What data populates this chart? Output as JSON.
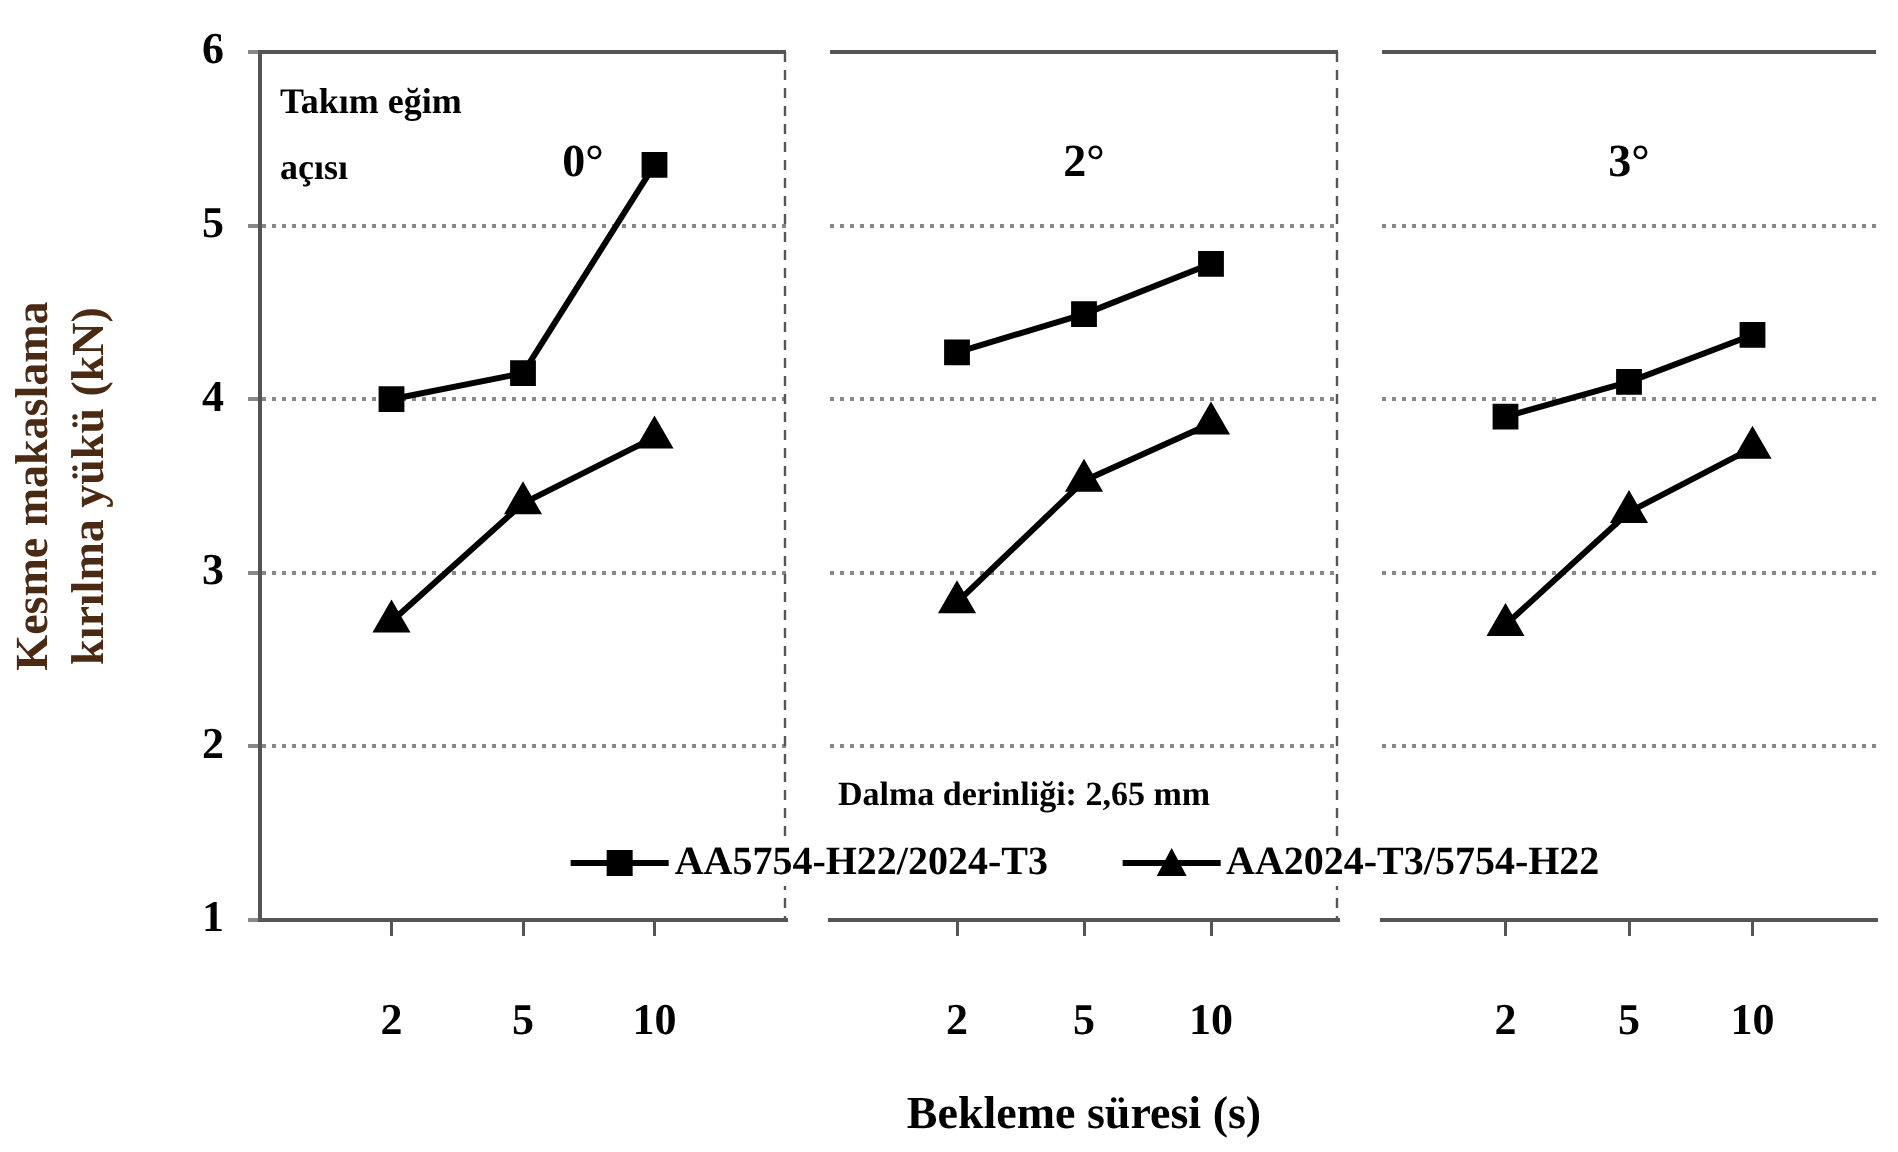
{
  "chart_data": [
    {
      "type": "line",
      "title": "0°",
      "ylabel": "Kesme makaslama kırılma yükü (kN)",
      "annotations": [
        "Takım eğim açısı"
      ],
      "categories": [
        "2",
        "5",
        "10"
      ],
      "series": [
        {
          "color": "#000000",
          "marker": "square",
          "values": [
            4.0,
            4.15,
            5.35
          ]
        },
        {
          "color": "#000000",
          "marker": "triangle",
          "values": [
            2.72,
            3.4,
            3.78
          ]
        }
      ],
      "ylim": [
        1,
        6
      ],
      "yticks": [
        1,
        2,
        3,
        4,
        5,
        6
      ],
      "grid": "y",
      "line_style": "solid"
    },
    {
      "type": "line",
      "title": "2°",
      "xlabel": "Bekleme süresi (s)",
      "annotations": [
        "Dalma derinliği: 2,65 mm"
      ],
      "categories": [
        "2",
        "5",
        "10"
      ],
      "series": [
        {
          "name": "AA5754-H22/2024-T3",
          "color": "#000000",
          "marker": "square",
          "values": [
            4.27,
            4.49,
            4.78
          ]
        },
        {
          "name": "AA2024-T3/5754-H22",
          "color": "#000000",
          "marker": "triangle",
          "values": [
            2.83,
            3.53,
            3.86
          ]
        }
      ],
      "ylim": [
        1,
        6
      ],
      "yticks": [
        1,
        2,
        3,
        4,
        5,
        6
      ],
      "grid": "y",
      "legend": "bottom",
      "tick_labels": "x",
      "line_style": "solid"
    },
    {
      "type": "line",
      "title": "3°",
      "categories": [
        "2",
        "5",
        "10"
      ],
      "series": [
        {
          "color": "#000000",
          "marker": "square",
          "values": [
            3.9,
            4.1,
            4.37
          ]
        },
        {
          "color": "#000000",
          "marker": "triangle",
          "values": [
            2.7,
            3.35,
            3.72
          ]
        }
      ],
      "ylim": [
        1,
        6
      ],
      "yticks": [
        1,
        2,
        3,
        4,
        5,
        6
      ],
      "grid": "y",
      "tick_labels": "x",
      "line_style": "solid"
    }
  ]
}
